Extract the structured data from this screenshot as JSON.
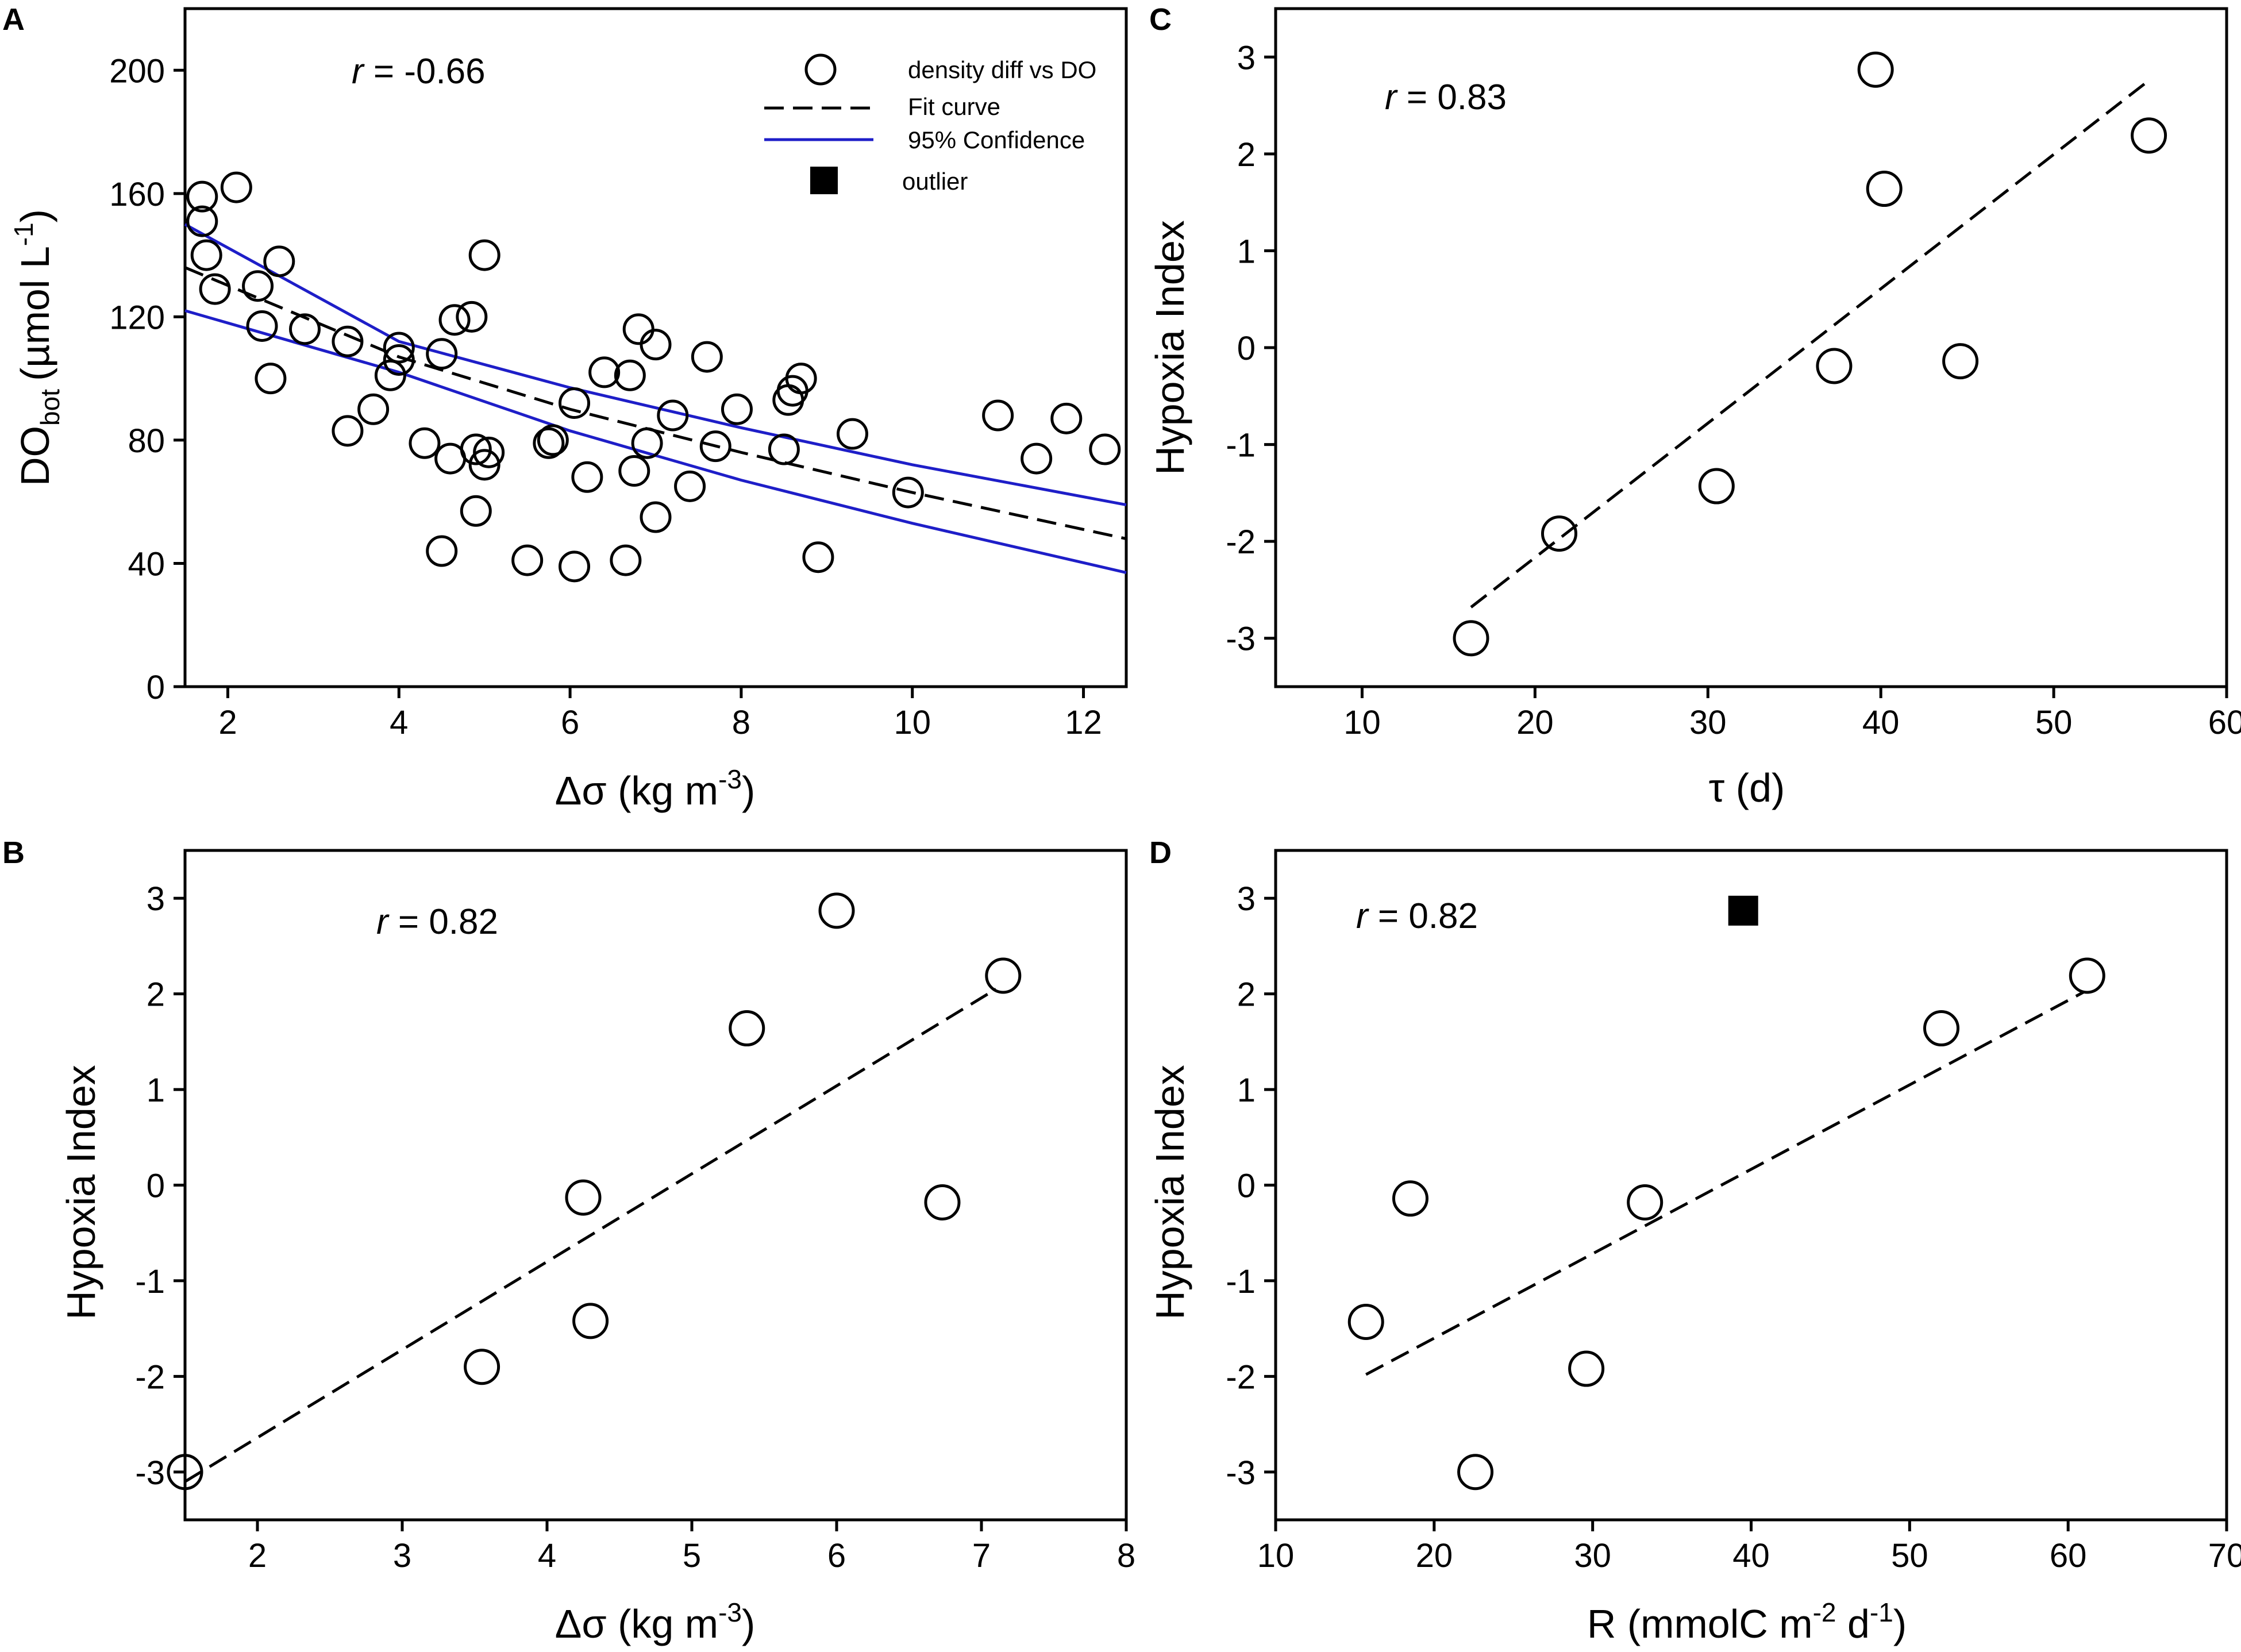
{
  "chart_data": [
    {
      "panel": "A",
      "type": "scatter",
      "ylabel_main": "DO",
      "ylabel_sub": "bot",
      "ylabel_unit": "(µmol L",
      "ylabel_unit_sup": "-1",
      "ylabel_close": ")",
      "xlabel_main": "Δσ (kg m",
      "xlabel_sup": "-3",
      "xlabel_close": ")",
      "xlim": [
        1.5,
        12.5
      ],
      "ylim": [
        0,
        220
      ],
      "xticks": [
        2,
        4,
        6,
        8,
        10,
        12
      ],
      "yticks": [
        0,
        40,
        80,
        120,
        160,
        200
      ],
      "r_label": "r",
      "r_value": " = -0.66",
      "legend": {
        "points": "density diff vs DO",
        "fit": "Fit curve",
        "ci": "95% Confidence",
        "outlier": "outlier"
      },
      "points": [
        [
          1.7,
          159
        ],
        [
          2.1,
          162
        ],
        [
          1.7,
          151
        ],
        [
          1.75,
          140
        ],
        [
          1.85,
          129
        ],
        [
          2.35,
          130
        ],
        [
          2.6,
          138
        ],
        [
          2.4,
          117
        ],
        [
          2.5,
          100
        ],
        [
          2.9,
          116
        ],
        [
          3.4,
          112
        ],
        [
          3.4,
          83
        ],
        [
          3.7,
          90
        ],
        [
          3.9,
          101
        ],
        [
          4.0,
          110
        ],
        [
          4.0,
          106
        ],
        [
          4.3,
          79
        ],
        [
          4.5,
          108
        ],
        [
          4.5,
          44
        ],
        [
          4.6,
          74
        ],
        [
          4.65,
          119
        ],
        [
          4.85,
          120
        ],
        [
          4.9,
          57
        ],
        [
          4.9,
          77
        ],
        [
          5.0,
          140
        ],
        [
          5.0,
          72
        ],
        [
          5.05,
          76
        ],
        [
          5.5,
          41
        ],
        [
          5.75,
          79
        ],
        [
          5.8,
          80
        ],
        [
          6.05,
          39
        ],
        [
          6.05,
          92
        ],
        [
          6.2,
          68
        ],
        [
          6.4,
          102
        ],
        [
          6.65,
          41
        ],
        [
          6.7,
          101
        ],
        [
          6.75,
          70
        ],
        [
          6.8,
          116
        ],
        [
          6.9,
          79
        ],
        [
          7.0,
          111
        ],
        [
          7.0,
          55
        ],
        [
          7.2,
          88
        ],
        [
          7.4,
          65
        ],
        [
          7.6,
          107
        ],
        [
          7.7,
          78
        ],
        [
          7.95,
          90
        ],
        [
          8.5,
          77
        ],
        [
          8.55,
          93
        ],
        [
          8.6,
          96
        ],
        [
          8.7,
          100
        ],
        [
          8.9,
          42
        ],
        [
          9.3,
          82
        ],
        [
          9.95,
          63
        ],
        [
          11.0,
          88
        ],
        [
          11.45,
          74
        ],
        [
          11.8,
          87
        ],
        [
          12.25,
          77
        ]
      ],
      "fit_curve": {
        "x": [
          1.5,
          4,
          6,
          8,
          10,
          12.5
        ],
        "y": [
          136,
          107,
          90,
          76,
          63,
          48
        ]
      },
      "ci_upper": {
        "x": [
          1.5,
          4,
          6,
          8,
          10,
          12.5
        ],
        "y": [
          150,
          112,
          97,
          84,
          72,
          59
        ]
      },
      "ci_lower": {
        "x": [
          1.5,
          4,
          6,
          8,
          10,
          12.5
        ],
        "y": [
          122,
          102,
          83,
          67,
          53,
          37
        ]
      }
    },
    {
      "panel": "B",
      "type": "scatter",
      "ylabel": "Hypoxia Index",
      "xlabel_main": "Δσ (kg m",
      "xlabel_sup": "-3",
      "xlabel_close": ")",
      "xlim": [
        1.5,
        8
      ],
      "ylim": [
        -3.5,
        3.5
      ],
      "xticks": [
        2,
        3,
        4,
        5,
        6,
        7,
        8
      ],
      "yticks": [
        -3,
        -2,
        -1,
        0,
        1,
        2,
        3
      ],
      "r_label": "r",
      "r_value": " = 0.82",
      "points": [
        [
          1.5,
          -3.0
        ],
        [
          3.55,
          -1.9
        ],
        [
          4.25,
          -0.13
        ],
        [
          4.3,
          -1.42
        ],
        [
          5.38,
          1.64
        ],
        [
          6.0,
          2.87
        ],
        [
          6.73,
          -0.18
        ],
        [
          7.15,
          2.19
        ]
      ],
      "fit_line": {
        "x": [
          1.5,
          7.1
        ],
        "y": [
          -3.1,
          2.05
        ]
      },
      "outliers": []
    },
    {
      "panel": "C",
      "type": "scatter",
      "ylabel": "Hypoxia Index",
      "xlabel": "τ (d)",
      "xlim": [
        5,
        60
      ],
      "ylim": [
        -3.5,
        3.5
      ],
      "xticks": [
        10,
        20,
        30,
        40,
        50,
        60
      ],
      "yticks": [
        -3,
        -2,
        -1,
        0,
        1,
        2,
        3
      ],
      "r_label": "r",
      "r_value": " = 0.83",
      "points": [
        [
          16.3,
          -3.0
        ],
        [
          21.4,
          -1.92
        ],
        [
          30.5,
          -1.43
        ],
        [
          37.3,
          -0.19
        ],
        [
          39.7,
          2.87
        ],
        [
          40.2,
          1.64
        ],
        [
          44.6,
          -0.14
        ],
        [
          55.5,
          2.19
        ]
      ],
      "fit_line": {
        "x": [
          16.3,
          55.3
        ],
        "y": [
          -2.68,
          2.73
        ]
      },
      "outliers": []
    },
    {
      "panel": "D",
      "type": "scatter",
      "ylabel": "Hypoxia Index",
      "xlabel_main": "R (mmolC m",
      "xlabel_sup1": "-2",
      "xlabel_mid": " d",
      "xlabel_sup2": "-1",
      "xlabel_close": ")",
      "xlim": [
        10,
        70
      ],
      "ylim": [
        -3.5,
        3.5
      ],
      "xticks": [
        10,
        20,
        30,
        40,
        50,
        60,
        70
      ],
      "yticks": [
        -3,
        -2,
        -1,
        0,
        1,
        2,
        3
      ],
      "r_label": "r",
      "r_value": " = 0.82",
      "points": [
        [
          15.7,
          -1.43
        ],
        [
          18.5,
          -0.14
        ],
        [
          22.6,
          -3.0
        ],
        [
          29.6,
          -1.92
        ],
        [
          33.3,
          -0.18
        ],
        [
          52.0,
          1.64
        ],
        [
          61.2,
          2.19
        ]
      ],
      "fit_line": {
        "x": [
          15.7,
          61.0
        ],
        "y": [
          -1.98,
          2.02
        ]
      },
      "outliers": [
        [
          39.5,
          2.87
        ]
      ]
    }
  ]
}
